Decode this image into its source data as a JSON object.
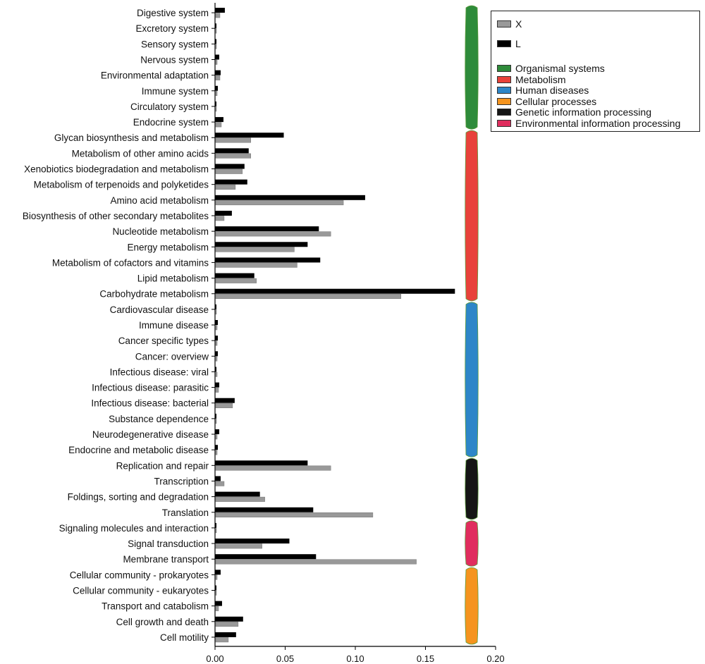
{
  "chart_data": {
    "type": "bar",
    "orientation": "horizontal",
    "categories": [
      "Digestive system",
      "Excretory system",
      "Sensory system",
      "Nervous system",
      "Environmental adaptation",
      "Immune system",
      "Circulatory system",
      "Endocrine system",
      "Glycan biosynthesis and metabolism",
      "Metabolism of other amino acids",
      "Xenobiotics biodegradation and metabolism",
      "Metabolism of terpenoids and polyketides",
      "Amino acid metabolism",
      "Biosynthesis of other secondary metabolites",
      "Nucleotide metabolism",
      "Energy metabolism",
      "Metabolism of cofactors and vitamins",
      "Lipid metabolism",
      "Carbohydrate metabolism",
      "Cardiovascular disease",
      "Immune disease",
      "Cancer specific types",
      "Cancer: overview",
      "Infectious disease: viral",
      "Infectious disease: parasitic",
      "Infectious disease: bacterial",
      "Substance dependence",
      "Neurodegenerative disease",
      "Endocrine and metabolic disease",
      "Replication and repair",
      "Transcription",
      "Foldings, sorting and degradation",
      "Translation",
      "Signaling molecules and interaction",
      "Signal transduction",
      "Membrane transport",
      "Cellular community - prokaryotes",
      "Cellular community - eukaryotes",
      "Transport and catabolism",
      "Cell growth and death",
      "Cell motility"
    ],
    "series": [
      {
        "name": "L",
        "color": "#000000",
        "values": [
          0.007,
          0.001,
          0.001,
          0.003,
          0.004,
          0.002,
          0.001,
          0.006,
          0.049,
          0.024,
          0.021,
          0.023,
          0.107,
          0.012,
          0.074,
          0.066,
          0.075,
          0.028,
          0.171,
          0.001,
          0.002,
          0.002,
          0.002,
          0.001,
          0.003,
          0.014,
          0.001,
          0.003,
          0.002,
          0.066,
          0.004,
          0.032,
          0.07,
          0.001,
          0.053,
          0.072,
          0.004,
          0.001,
          0.005,
          0.02,
          0.015
        ]
      },
      {
        "name": "X",
        "color": "#999999",
        "values": [
          0.003,
          0.0005,
          0.0005,
          0.001,
          0.003,
          0.001,
          0.0005,
          0.004,
          0.025,
          0.025,
          0.019,
          0.014,
          0.091,
          0.006,
          0.082,
          0.056,
          0.058,
          0.029,
          0.132,
          0.0005,
          0.001,
          0.001,
          0.001,
          0.001,
          0.002,
          0.012,
          0.0005,
          0.001,
          0.001,
          0.082,
          0.006,
          0.035,
          0.112,
          0.0005,
          0.033,
          0.143,
          0.001,
          0.0005,
          0.002,
          0.016,
          0.009
        ]
      }
    ],
    "xticks": [
      "0.00",
      "0.05",
      "0.10",
      "0.15",
      "0.20"
    ],
    "xlim": [
      0,
      0.2
    ],
    "grid": false,
    "legend_position": "top-right",
    "groups": [
      {
        "name": "Organismal systems",
        "color": "#2e8b3a",
        "start": 0,
        "end": 7
      },
      {
        "name": "Metabolism",
        "color": "#e8423a",
        "start": 8,
        "end": 18
      },
      {
        "name": "Human diseases",
        "color": "#2d86c8",
        "start": 19,
        "end": 28
      },
      {
        "name": "Genetic information processing",
        "color": "#151515",
        "start": 29,
        "end": 32
      },
      {
        "name": "Environmental information processing",
        "color": "#e02d5e",
        "start": 33,
        "end": 35
      },
      {
        "name": "Cellular processes",
        "color": "#f5941e",
        "start": 36,
        "end": 40
      }
    ]
  },
  "legend": {
    "series": [
      {
        "label": "X",
        "color": "#999999"
      },
      {
        "label": "L",
        "color": "#000000"
      }
    ],
    "groups": [
      {
        "label": "Organismal systems",
        "color": "#2e8b3a"
      },
      {
        "label": "Metabolism",
        "color": "#e8423a"
      },
      {
        "label": "Human diseases",
        "color": "#2d86c8"
      },
      {
        "label": "Cellular processes",
        "color": "#f5941e"
      },
      {
        "label": "Genetic information processing",
        "color": "#151515"
      },
      {
        "label": "Environmental information processing",
        "color": "#e02d5e"
      }
    ]
  }
}
